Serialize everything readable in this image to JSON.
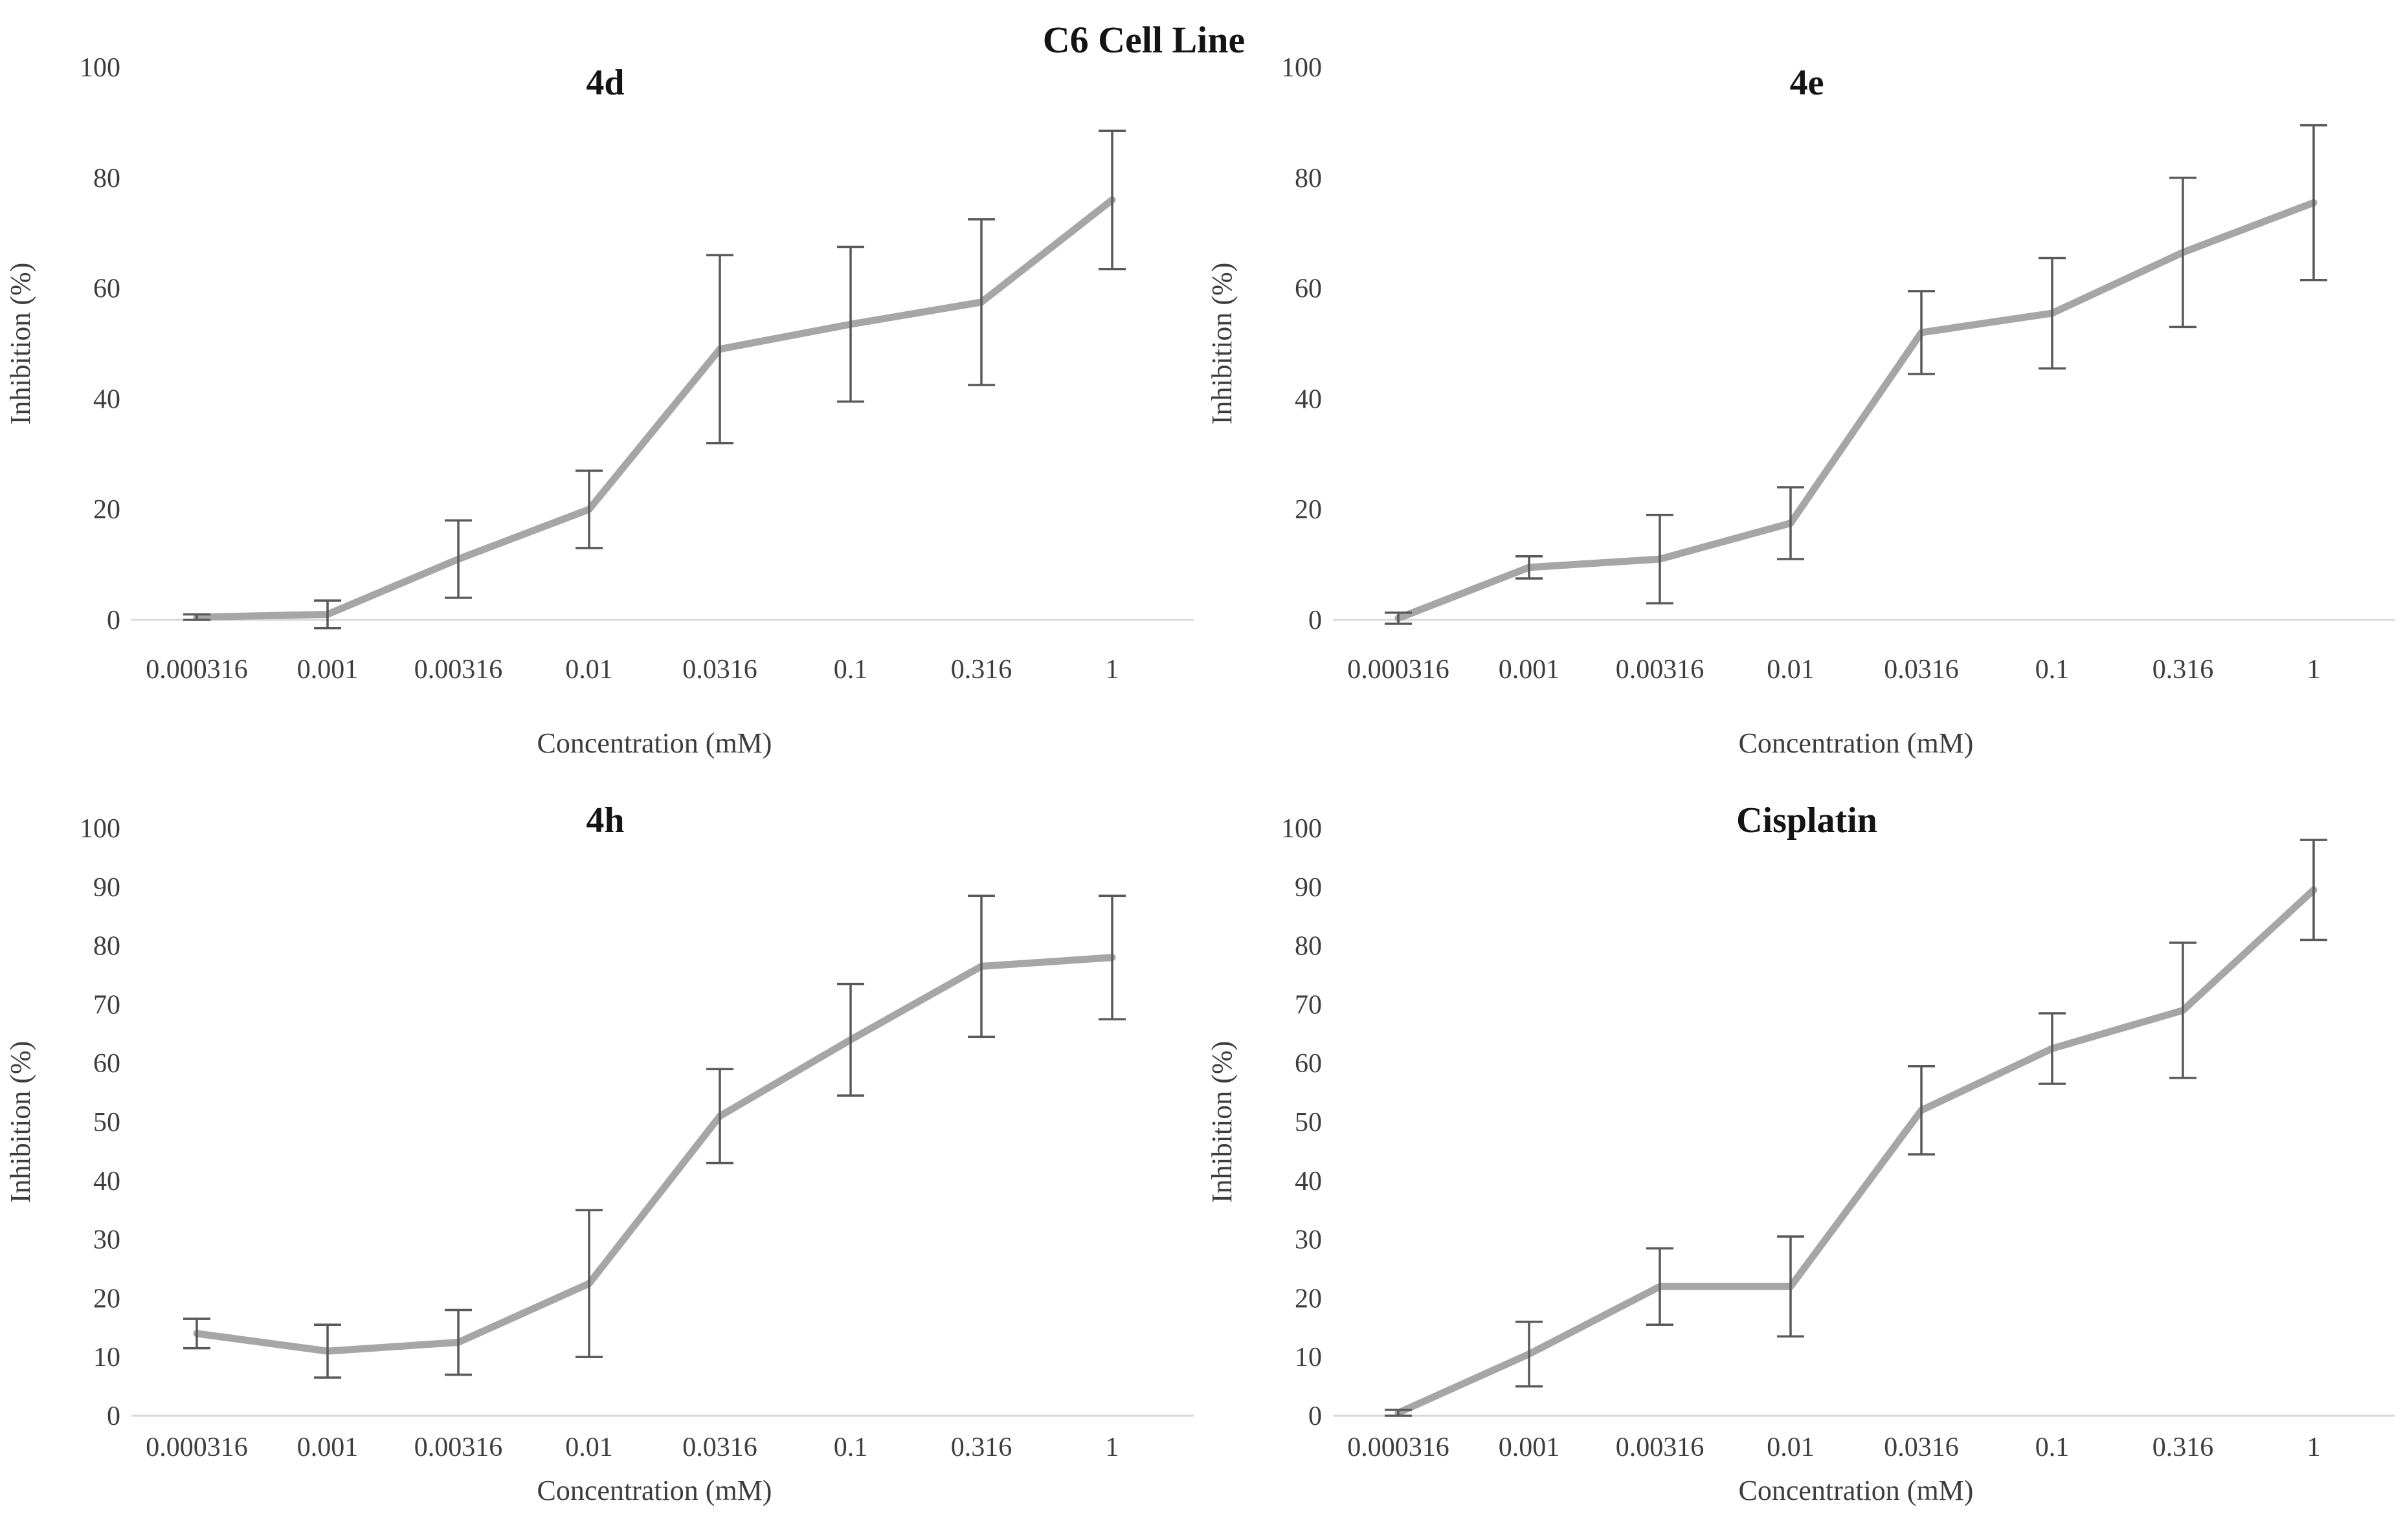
{
  "figure": {
    "title": "C6 Cell Line",
    "background_color": "#ffffff",
    "series_line_color": "#a6a6a6",
    "error_bar_color": "#595959",
    "axis_line_color": "#d9d9d9",
    "tick_text_color": "#3d3d3d",
    "axis_title_color": "#3d3d3d",
    "panel_title_color": "#141414"
  },
  "chart_data": [
    {
      "id": "4d",
      "type": "line",
      "title": "4d",
      "xlabel": "Concentration (mM)",
      "ylabel": "Inhibition (%)",
      "x_axis_type": "category",
      "categories": [
        "0.000316",
        "0.001",
        "0.00316",
        "0.01",
        "0.0316",
        "0.1",
        "0.316",
        "1"
      ],
      "values": [
        0.5,
        1,
        11,
        20,
        49,
        53.5,
        57.5,
        76
      ],
      "error_bars": [
        0.5,
        2.5,
        7,
        7,
        17,
        14,
        15,
        12.5
      ],
      "ylim": [
        0,
        100
      ],
      "ytick_step": 20,
      "ytick_labels": [
        "0",
        "20",
        "40",
        "60",
        "80",
        "100"
      ],
      "grid": false,
      "legend": "none"
    },
    {
      "id": "4e",
      "type": "line",
      "title": "4e",
      "xlabel": "Concentration (mM)",
      "ylabel": "Inhibition (%)",
      "x_axis_type": "category",
      "categories": [
        "0.000316",
        "0.001",
        "0.00316",
        "0.01",
        "0.0316",
        "0.1",
        "0.316",
        "1"
      ],
      "values": [
        0.3,
        9.5,
        11,
        17.5,
        52,
        55.5,
        66.5,
        75.5
      ],
      "error_bars": [
        1,
        2,
        8,
        6.5,
        7.5,
        10,
        13.5,
        14
      ],
      "ylim": [
        0,
        100
      ],
      "ytick_step": 20,
      "ytick_labels": [
        "0",
        "20",
        "40",
        "60",
        "80",
        "100"
      ],
      "grid": false,
      "legend": "none"
    },
    {
      "id": "4h",
      "type": "line",
      "title": "4h",
      "xlabel": "Concentration (mM)",
      "ylabel": "Inhibition (%)",
      "x_axis_type": "category",
      "categories": [
        "0.000316",
        "0.001",
        "0.00316",
        "0.01",
        "0.0316",
        "0.1",
        "0.316",
        "1"
      ],
      "values": [
        14,
        11,
        12.5,
        22.5,
        51,
        64,
        76.5,
        78
      ],
      "error_bars": [
        2.5,
        4.5,
        5.5,
        12.5,
        8,
        9.5,
        12,
        10.5
      ],
      "ylim": [
        0,
        100
      ],
      "ytick_step": 10,
      "ytick_labels": [
        "0",
        "10",
        "20",
        "30",
        "40",
        "50",
        "60",
        "70",
        "80",
        "90",
        "100"
      ],
      "grid": false,
      "legend": "none"
    },
    {
      "id": "cisplatin",
      "type": "line",
      "title": "Cisplatin",
      "xlabel": "Concentration (mM)",
      "ylabel": "Inhibition (%)",
      "x_axis_type": "category",
      "categories": [
        "0.000316",
        "0.001",
        "0.00316",
        "0.01",
        "0.0316",
        "0.1",
        "0.316",
        "1"
      ],
      "values": [
        0.5,
        10.5,
        22,
        22,
        52,
        62.5,
        69,
        89.5
      ],
      "error_bars": [
        0.5,
        5.5,
        6.5,
        8.5,
        7.5,
        6,
        11.5,
        8.5
      ],
      "ylim": [
        0,
        100
      ],
      "ytick_step": 10,
      "ytick_labels": [
        "0",
        "10",
        "20",
        "30",
        "40",
        "50",
        "60",
        "70",
        "80",
        "90",
        "100"
      ],
      "grid": false,
      "legend": "none"
    }
  ]
}
